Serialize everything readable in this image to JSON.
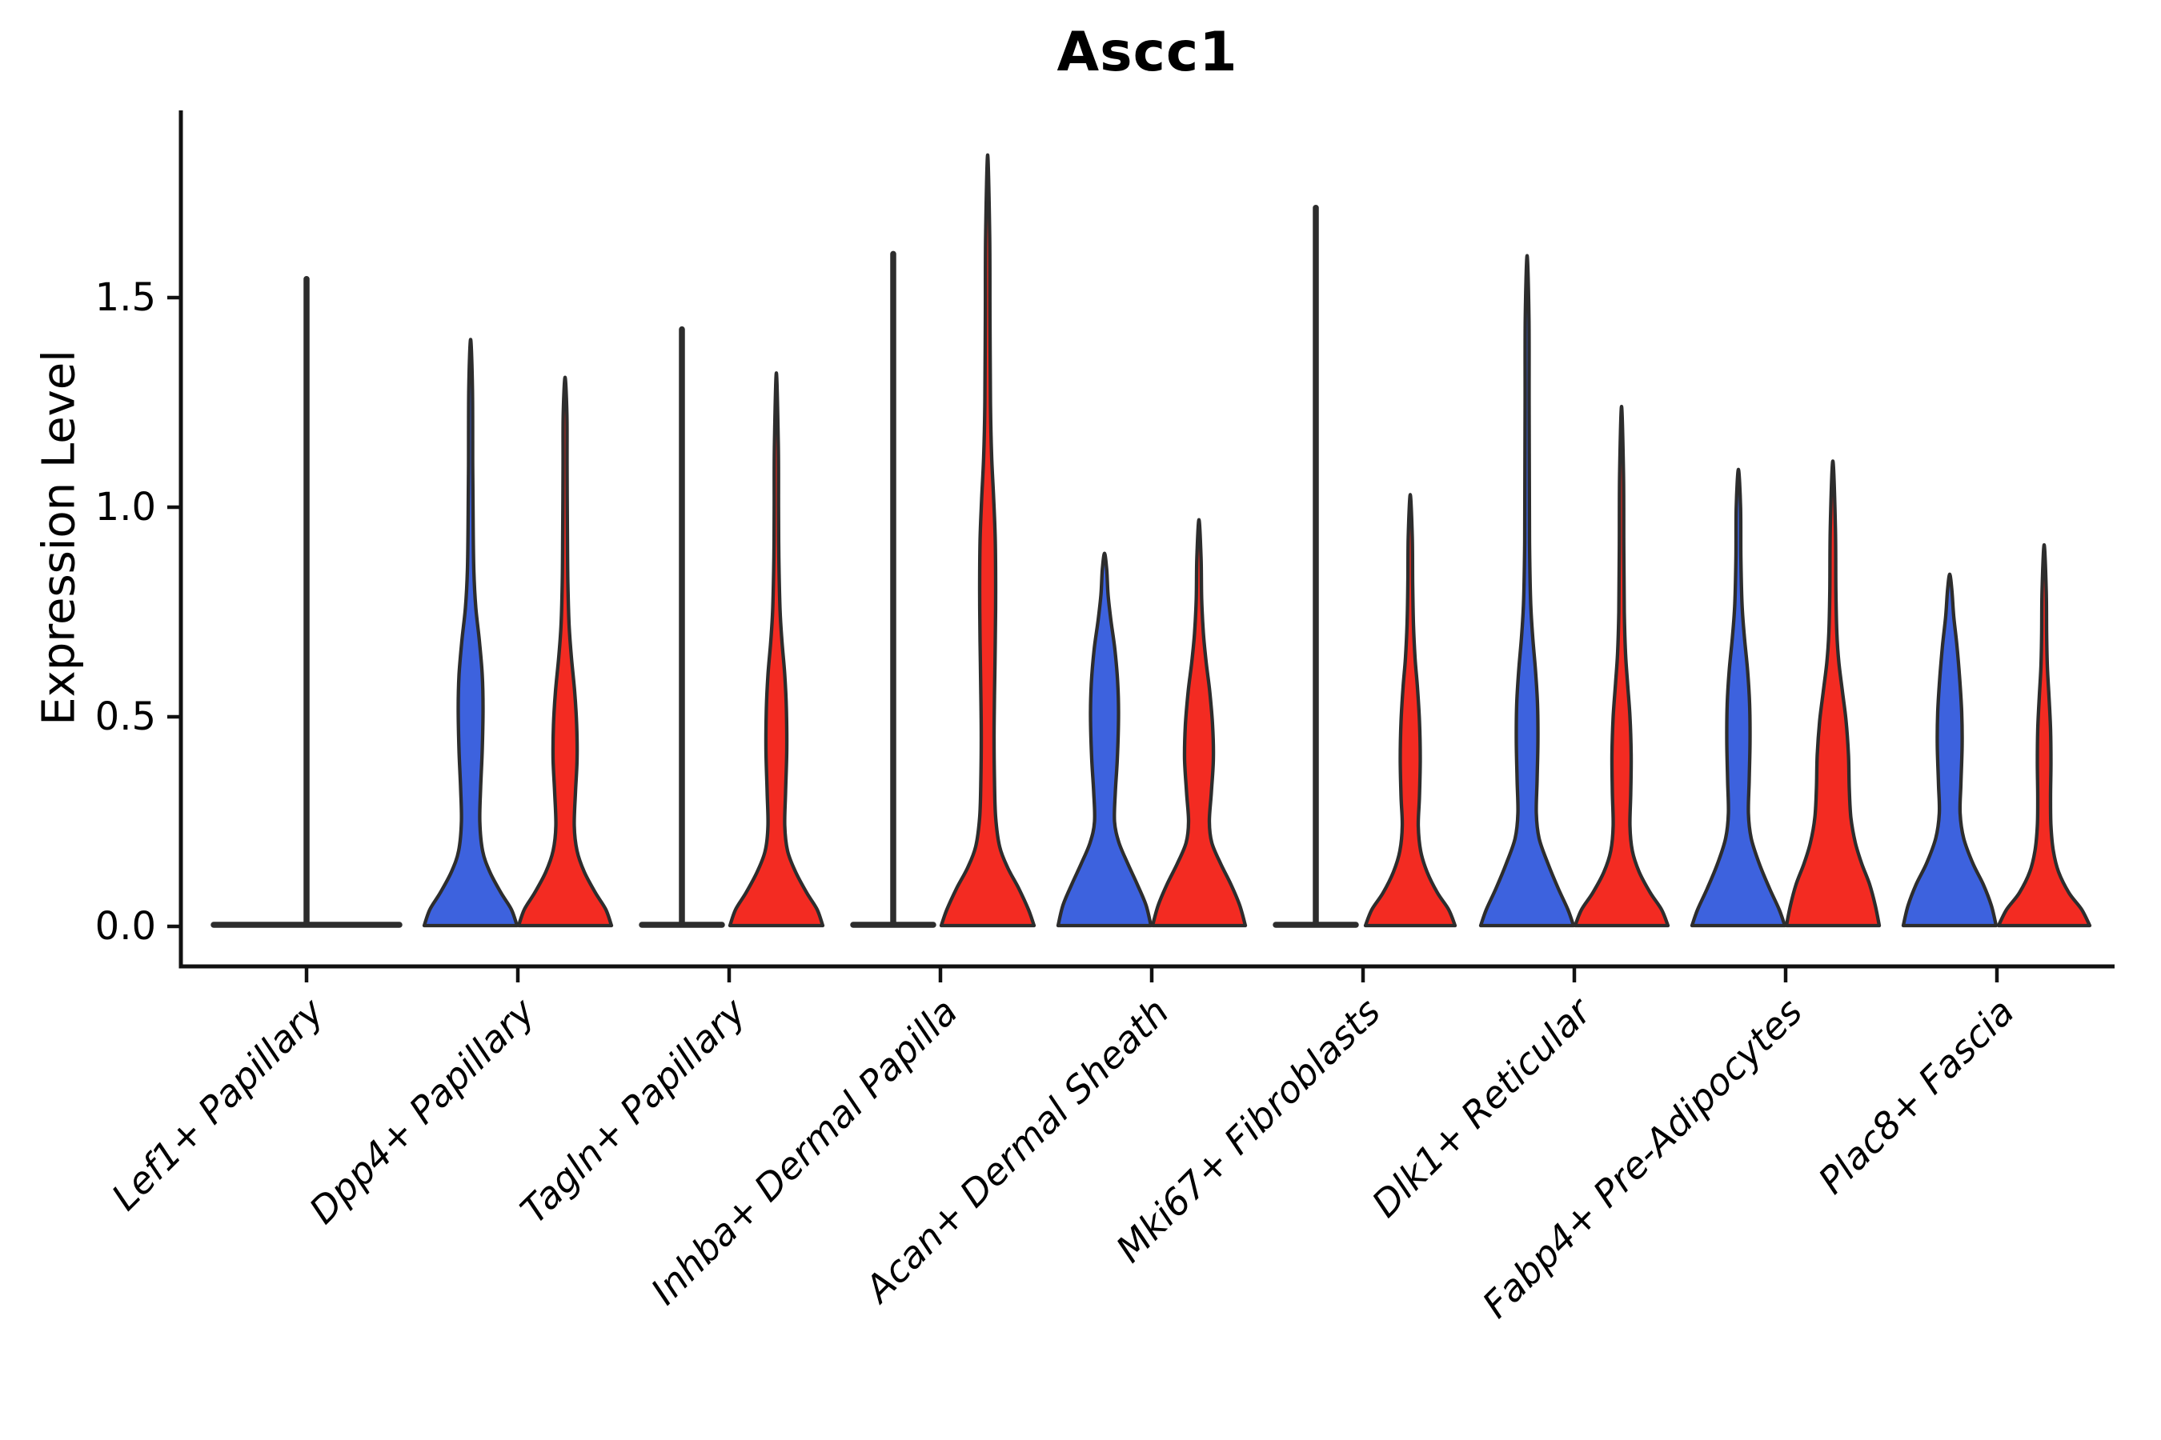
{
  "chart_data": {
    "type": "violin",
    "title": "Ascc1",
    "ylabel": "Expression Level",
    "xlabel": "",
    "legend": "none",
    "grid": false,
    "ylim": [
      -0.1,
      1.95
    ],
    "ytick_labels": [
      "0.0",
      "0.5",
      "1.0",
      "1.5"
    ],
    "ytick_values": [
      0.0,
      0.5,
      1.0,
      1.5
    ],
    "categories": [
      "Lef1+ Papillary",
      "Dpp4+ Papillary",
      "Tagln+ Papillary",
      "Inhba+ Dermal Papilla",
      "Acan+ Dermal Sheath",
      "Mki67+ Fibroblasts",
      "Dlk1+ Reticular",
      "Fabp4+ Pre-Adipocytes",
      "Plac8+ Fascia"
    ],
    "colors": {
      "blue": "#3D62DE",
      "red": "#F32B22",
      "outline": "#2D2D2D",
      "axis": "#111111"
    },
    "violins": [
      {
        "category_index": 0,
        "slot": "center",
        "style": "flat",
        "color": "none",
        "base_halfwidth": 120,
        "top": 1.55
      },
      {
        "category_index": 1,
        "slot": "left",
        "style": "violin",
        "color": "blue",
        "top": 1.4,
        "profile": [
          [
            0,
            58
          ],
          [
            0.04,
            51
          ],
          [
            0.08,
            38
          ],
          [
            0.13,
            24
          ],
          [
            0.18,
            15
          ],
          [
            0.25,
            11.5
          ],
          [
            0.33,
            12.5
          ],
          [
            0.42,
            14.5
          ],
          [
            0.52,
            15.5
          ],
          [
            0.6,
            14.5
          ],
          [
            0.68,
            11
          ],
          [
            0.76,
            6.5
          ],
          [
            0.85,
            4
          ],
          [
            0.95,
            3.2
          ],
          [
            1.1,
            2.6
          ],
          [
            1.28,
            2.3
          ],
          [
            1.4,
            0
          ]
        ]
      },
      {
        "category_index": 1,
        "slot": "right",
        "style": "violin",
        "color": "red",
        "top": 1.31,
        "profile": [
          [
            0,
            58
          ],
          [
            0.04,
            51
          ],
          [
            0.08,
            38
          ],
          [
            0.13,
            24
          ],
          [
            0.18,
            15
          ],
          [
            0.24,
            11.5
          ],
          [
            0.32,
            13
          ],
          [
            0.4,
            15
          ],
          [
            0.48,
            14.5
          ],
          [
            0.56,
            12
          ],
          [
            0.64,
            8
          ],
          [
            0.72,
            5
          ],
          [
            0.82,
            3.5
          ],
          [
            0.95,
            2.9
          ],
          [
            1.1,
            2.5
          ],
          [
            1.22,
            2.3
          ],
          [
            1.31,
            0
          ]
        ]
      },
      {
        "category_index": 2,
        "slot": "left",
        "style": "flat",
        "color": "none",
        "base_halfwidth": 54,
        "top": 1.43
      },
      {
        "category_index": 2,
        "slot": "right",
        "style": "violin",
        "color": "red",
        "top": 1.32,
        "profile": [
          [
            0,
            58
          ],
          [
            0.04,
            51
          ],
          [
            0.08,
            38
          ],
          [
            0.13,
            24
          ],
          [
            0.18,
            14
          ],
          [
            0.24,
            10.5
          ],
          [
            0.32,
            11.5
          ],
          [
            0.42,
            13
          ],
          [
            0.52,
            12.5
          ],
          [
            0.6,
            10.5
          ],
          [
            0.68,
            7
          ],
          [
            0.76,
            4.5
          ],
          [
            0.88,
            3.1
          ],
          [
            1.0,
            2.7
          ],
          [
            1.15,
            2.4
          ],
          [
            1.32,
            0
          ]
        ]
      },
      {
        "category_index": 3,
        "slot": "left",
        "style": "flat",
        "color": "none",
        "base_halfwidth": 54,
        "top": 1.61
      },
      {
        "category_index": 3,
        "slot": "right",
        "style": "violin",
        "color": "red",
        "top": 1.84,
        "profile": [
          [
            0,
            58
          ],
          [
            0.04,
            51
          ],
          [
            0.09,
            39
          ],
          [
            0.14,
            25
          ],
          [
            0.19,
            15
          ],
          [
            0.26,
            10
          ],
          [
            0.35,
            8.5
          ],
          [
            0.45,
            8
          ],
          [
            0.55,
            8.5
          ],
          [
            0.68,
            9.5
          ],
          [
            0.8,
            10
          ],
          [
            0.92,
            9.5
          ],
          [
            1.02,
            7.5
          ],
          [
            1.12,
            5
          ],
          [
            1.25,
            3.5
          ],
          [
            1.45,
            2.9
          ],
          [
            1.65,
            2.5
          ],
          [
            1.84,
            0
          ]
        ]
      },
      {
        "category_index": 4,
        "slot": "left",
        "style": "violin",
        "color": "blue",
        "top": 0.89,
        "profile": [
          [
            0,
            58
          ],
          [
            0.05,
            52
          ],
          [
            0.1,
            41
          ],
          [
            0.15,
            29
          ],
          [
            0.2,
            18
          ],
          [
            0.25,
            12.5
          ],
          [
            0.32,
            13.5
          ],
          [
            0.4,
            16
          ],
          [
            0.5,
            17.5
          ],
          [
            0.58,
            16.5
          ],
          [
            0.66,
            13
          ],
          [
            0.73,
            8
          ],
          [
            0.79,
            4.5
          ],
          [
            0.85,
            2.8
          ],
          [
            0.89,
            0
          ]
        ]
      },
      {
        "category_index": 4,
        "slot": "right",
        "style": "violin",
        "color": "red",
        "top": 0.97,
        "profile": [
          [
            0,
            58
          ],
          [
            0.05,
            51
          ],
          [
            0.1,
            40
          ],
          [
            0.15,
            27
          ],
          [
            0.2,
            16
          ],
          [
            0.25,
            13
          ],
          [
            0.32,
            15.5
          ],
          [
            0.4,
            18
          ],
          [
            0.48,
            17
          ],
          [
            0.56,
            13.5
          ],
          [
            0.63,
            9
          ],
          [
            0.7,
            5.5
          ],
          [
            0.78,
            3.4
          ],
          [
            0.88,
            2.6
          ],
          [
            0.97,
            0
          ]
        ]
      },
      {
        "category_index": 5,
        "slot": "left",
        "style": "flat",
        "color": "none",
        "base_halfwidth": 54,
        "top": 1.72
      },
      {
        "category_index": 5,
        "slot": "right",
        "style": "violin",
        "color": "red",
        "top": 1.03,
        "profile": [
          [
            0,
            56
          ],
          [
            0.04,
            48
          ],
          [
            0.08,
            34
          ],
          [
            0.13,
            21
          ],
          [
            0.18,
            13
          ],
          [
            0.24,
            10
          ],
          [
            0.31,
            11.5
          ],
          [
            0.4,
            12.5
          ],
          [
            0.49,
            11.5
          ],
          [
            0.57,
            9
          ],
          [
            0.64,
            6
          ],
          [
            0.72,
            4
          ],
          [
            0.82,
            3
          ],
          [
            0.93,
            2.5
          ],
          [
            1.03,
            0
          ]
        ]
      },
      {
        "category_index": 6,
        "slot": "left",
        "style": "violin",
        "color": "blue",
        "top": 1.6,
        "profile": [
          [
            0,
            58
          ],
          [
            0.04,
            51
          ],
          [
            0.09,
            39
          ],
          [
            0.15,
            26
          ],
          [
            0.21,
            15
          ],
          [
            0.27,
            11.5
          ],
          [
            0.35,
            12.5
          ],
          [
            0.44,
            13.5
          ],
          [
            0.53,
            13
          ],
          [
            0.61,
            10.5
          ],
          [
            0.69,
            7
          ],
          [
            0.77,
            4.5
          ],
          [
            0.9,
            3.1
          ],
          [
            1.05,
            2.8
          ],
          [
            1.25,
            2.5
          ],
          [
            1.45,
            2.3
          ],
          [
            1.6,
            0
          ]
        ]
      },
      {
        "category_index": 6,
        "slot": "right",
        "style": "violin",
        "color": "red",
        "top": 1.24,
        "profile": [
          [
            0,
            58
          ],
          [
            0.04,
            50
          ],
          [
            0.08,
            36
          ],
          [
            0.13,
            22
          ],
          [
            0.18,
            13.5
          ],
          [
            0.24,
            10.5
          ],
          [
            0.32,
            11.5
          ],
          [
            0.41,
            12
          ],
          [
            0.5,
            10.5
          ],
          [
            0.58,
            7.5
          ],
          [
            0.65,
            5
          ],
          [
            0.75,
            3.4
          ],
          [
            0.9,
            2.8
          ],
          [
            1.08,
            2.4
          ],
          [
            1.24,
            0
          ]
        ]
      },
      {
        "category_index": 7,
        "slot": "left",
        "style": "violin",
        "color": "blue",
        "top": 1.09,
        "profile": [
          [
            0,
            58
          ],
          [
            0.04,
            51
          ],
          [
            0.09,
            39
          ],
          [
            0.15,
            26
          ],
          [
            0.21,
            16
          ],
          [
            0.27,
            12.5
          ],
          [
            0.35,
            13.5
          ],
          [
            0.44,
            14.5
          ],
          [
            0.53,
            14
          ],
          [
            0.61,
            11.5
          ],
          [
            0.69,
            7.5
          ],
          [
            0.77,
            4.5
          ],
          [
            0.88,
            3.1
          ],
          [
            1.0,
            2.7
          ],
          [
            1.09,
            0
          ]
        ]
      },
      {
        "category_index": 7,
        "slot": "right",
        "style": "violin",
        "color": "red",
        "top": 1.11,
        "profile": [
          [
            0,
            58
          ],
          [
            0.05,
            53
          ],
          [
            0.1,
            46
          ],
          [
            0.15,
            36
          ],
          [
            0.2,
            28
          ],
          [
            0.26,
            22.5
          ],
          [
            0.33,
            20.5
          ],
          [
            0.41,
            19.5
          ],
          [
            0.49,
            16.5
          ],
          [
            0.56,
            12
          ],
          [
            0.63,
            7.5
          ],
          [
            0.7,
            5
          ],
          [
            0.8,
            3.8
          ],
          [
            0.95,
            3.2
          ],
          [
            1.11,
            0
          ]
        ]
      },
      {
        "category_index": 8,
        "slot": "left",
        "style": "violin",
        "color": "blue",
        "top": 0.84,
        "profile": [
          [
            0,
            58
          ],
          [
            0.05,
            52
          ],
          [
            0.1,
            42
          ],
          [
            0.15,
            29
          ],
          [
            0.21,
            17.5
          ],
          [
            0.27,
            13
          ],
          [
            0.34,
            14
          ],
          [
            0.43,
            15.5
          ],
          [
            0.51,
            15
          ],
          [
            0.59,
            12.5
          ],
          [
            0.67,
            9
          ],
          [
            0.74,
            5
          ],
          [
            0.8,
            2.8
          ],
          [
            0.84,
            0
          ]
        ]
      },
      {
        "category_index": 8,
        "slot": "right",
        "style": "violin",
        "color": "red",
        "top": 0.91,
        "profile": [
          [
            0,
            57
          ],
          [
            0.04,
            47
          ],
          [
            0.08,
            31
          ],
          [
            0.13,
            18
          ],
          [
            0.18,
            11.5
          ],
          [
            0.24,
            8.5
          ],
          [
            0.31,
            8
          ],
          [
            0.39,
            8.5
          ],
          [
            0.47,
            8
          ],
          [
            0.55,
            6
          ],
          [
            0.62,
            4
          ],
          [
            0.7,
            3.1
          ],
          [
            0.8,
            2.6
          ],
          [
            0.91,
            0
          ]
        ]
      }
    ]
  }
}
